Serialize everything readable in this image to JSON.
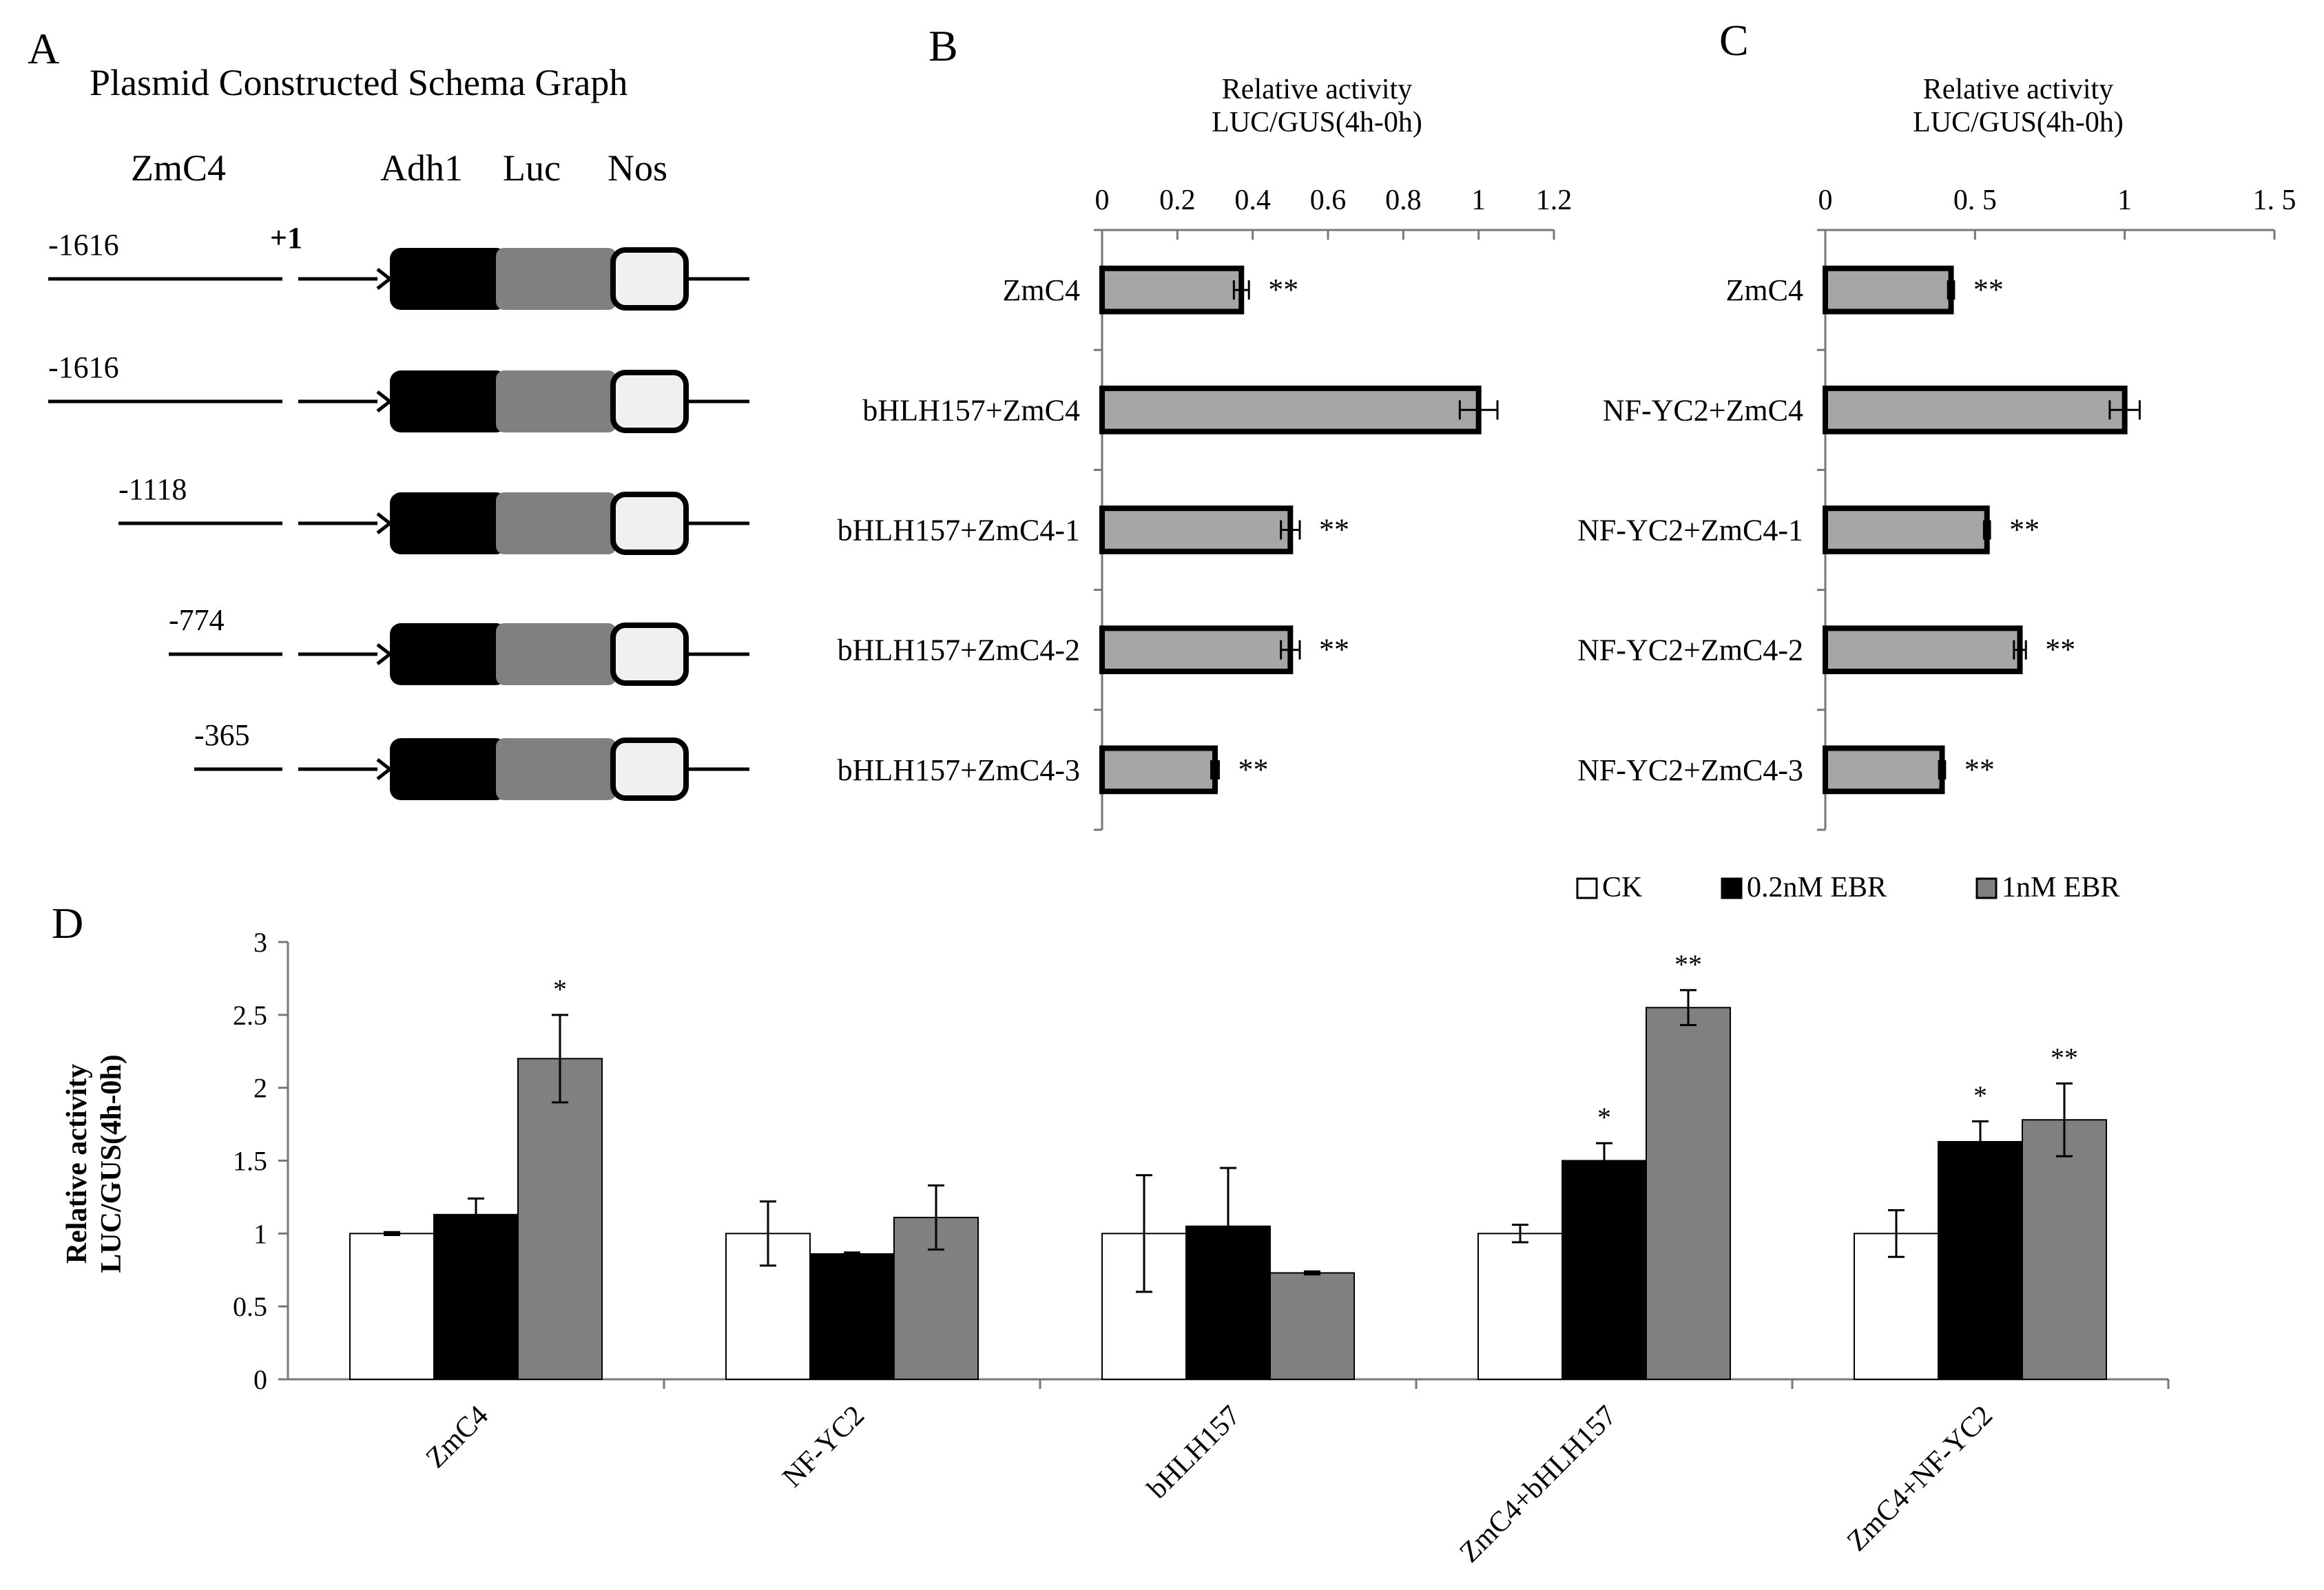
{
  "panels": {
    "A": {
      "letter": "A",
      "title": "Plasmid Constructed Schema Graph",
      "promoter_label": "ZmC4",
      "element_labels": [
        "Adh1",
        "Luc",
        "Nos"
      ],
      "tss_label": "+1",
      "constructs": [
        {
          "start_label": "-1616",
          "start": -1616
        },
        {
          "start_label": "-1616",
          "start": -1616
        },
        {
          "start_label": "-1118",
          "start": -1118
        },
        {
          "start_label": "-774",
          "start": -774
        },
        {
          "start_label": "-365",
          "start": -365
        }
      ]
    },
    "B": {
      "letter": "B"
    },
    "C": {
      "letter": "C"
    },
    "D": {
      "letter": "D"
    }
  },
  "colors": {
    "black": "#000000",
    "luc_gray": "#808080",
    "nos_fill": "#f0f0f0",
    "bar_gray": "#a6a6a6",
    "ck_white": "#ffffff"
  },
  "chart_data": [
    {
      "panel": "B",
      "type": "bar",
      "orientation": "horizontal",
      "title": "Relative activity\nLUC/GUS(4h-0h)",
      "xlim": [
        0,
        1.2
      ],
      "ticks": [
        "0",
        "0.2",
        "0.4",
        "0.6",
        "0.8",
        "1",
        "1.2"
      ],
      "tick_values": [
        0,
        0.2,
        0.4,
        0.6,
        0.8,
        1.0,
        1.2
      ],
      "categories": [
        "ZmC4",
        "bHLH157+ZmC4",
        "bHLH157+ZmC4-1",
        "bHLH157+ZmC4-2",
        "bHLH157+ZmC4-3"
      ],
      "values": [
        0.37,
        1.0,
        0.5,
        0.5,
        0.3
      ],
      "errors": [
        0.02,
        0.05,
        0.025,
        0.025,
        0.01
      ],
      "significance": [
        "**",
        "",
        "**",
        "**",
        "**"
      ]
    },
    {
      "panel": "C",
      "type": "bar",
      "orientation": "horizontal",
      "title": "Relative activity\nLUC/GUS(4h-0h)",
      "xlim": [
        0,
        1.5
      ],
      "ticks": [
        "0",
        "0. 5",
        "1",
        "1. 5"
      ],
      "tick_values": [
        0,
        0.5,
        1.0,
        1.5
      ],
      "categories": [
        "ZmC4",
        "NF-YC2+ZmC4",
        "NF-YC2+ZmC4-1",
        "NF-YC2+ZmC4-2",
        "NF-YC2+ZmC4-3"
      ],
      "values": [
        0.42,
        1.0,
        0.54,
        0.65,
        0.39
      ],
      "errors": [
        0.01,
        0.05,
        0.01,
        0.02,
        0.01
      ],
      "significance": [
        "**",
        "",
        "**",
        "**",
        "**"
      ]
    },
    {
      "panel": "D",
      "type": "bar",
      "orientation": "vertical",
      "ylabel": "Relative activity\nLUC/GUS(4h-0h)",
      "ylim": [
        0,
        3
      ],
      "yticks": [
        "0",
        "0.5",
        "1",
        "1.5",
        "2",
        "2.5",
        "3"
      ],
      "ytick_values": [
        0,
        0.5,
        1,
        1.5,
        2,
        2.5,
        3
      ],
      "categories": [
        "ZmC4",
        "NF-YC2",
        "bHLH157",
        "ZmC4+bHLH157",
        "ZmC4+NF-YC2"
      ],
      "legend_position": "top-right",
      "series": [
        {
          "name": "CK",
          "color": "#ffffff",
          "values": [
            1.0,
            1.0,
            1.0,
            1.0,
            1.0
          ],
          "errors": [
            0.01,
            0.22,
            0.4,
            0.06,
            0.16
          ],
          "significance": [
            "",
            "",
            "",
            "",
            ""
          ]
        },
        {
          "name": "0.2nM EBR",
          "color": "#000000",
          "values": [
            1.13,
            0.86,
            1.05,
            1.5,
            1.63
          ],
          "errors": [
            0.11,
            0.01,
            0.4,
            0.12,
            0.14
          ],
          "significance": [
            "",
            "",
            "",
            "*",
            "*"
          ]
        },
        {
          "name": "1nM EBR",
          "color": "#808080",
          "values": [
            2.2,
            1.11,
            0.73,
            2.55,
            1.78
          ],
          "errors": [
            0.3,
            0.22,
            0.01,
            0.12,
            0.25
          ],
          "significance": [
            "*",
            "",
            "",
            "**",
            "**"
          ]
        }
      ]
    }
  ]
}
